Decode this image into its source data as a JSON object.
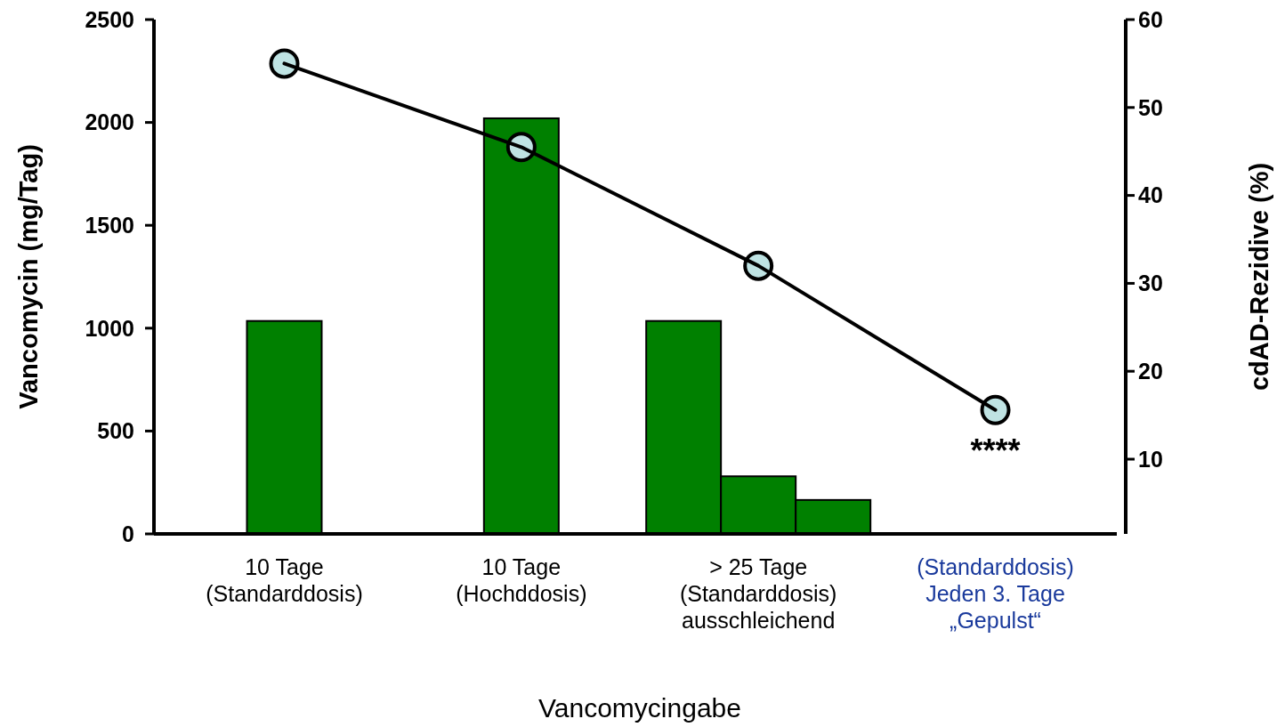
{
  "chart_data": {
    "type": "bar",
    "xlabel": "Vancomycingabe",
    "ylabel": "Vancomycin (mg/Tag)",
    "y2label": "cdAD-Rezidive (%)",
    "categories": [
      "10 Tage\n(Standarddosis)",
      "10 Tage\n(Hochddosis)",
      "> 25 Tage\n(Standarddosis)\nausschleichend",
      "(Standarddosis)\nJeden 3. Tage\n„Gepulst“"
    ],
    "series": [
      {
        "color": "#008000",
        "values": [
          1035,
          2020,
          1035,
          null
        ]
      },
      {
        "color": "#008000",
        "values": [
          null,
          null,
          280,
          null
        ]
      },
      {
        "color": "#008000",
        "values": [
          null,
          null,
          165,
          null
        ]
      },
      {
        "type": "line",
        "axis": "y2",
        "color": "#000000",
        "marker": "circle",
        "values": [
          55,
          45.5,
          32,
          15.6
        ]
      }
    ],
    "ylim": [
      0,
      2500
    ],
    "yticks": [
      0,
      500,
      1000,
      1500,
      2000,
      2500
    ],
    "y2lim": [
      1.5,
      60
    ],
    "y2ticks": [
      10,
      20,
      30,
      40,
      50,
      60
    ],
    "annotations": [
      "****"
    ]
  }
}
